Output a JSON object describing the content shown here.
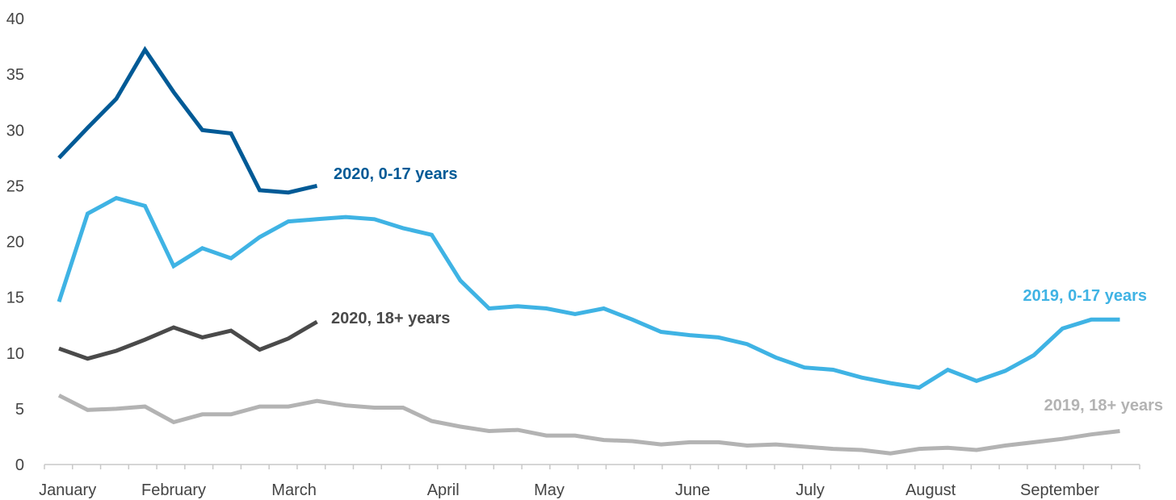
{
  "chart_data": {
    "type": "line",
    "title": "",
    "xlabel": "",
    "ylabel": "",
    "ylim": [
      0,
      40
    ],
    "yticks": [
      0,
      5,
      10,
      15,
      20,
      25,
      30,
      35,
      40
    ],
    "grid": false,
    "legend": "inline labels at line ends",
    "month_labels": [
      "January",
      "February",
      "March",
      "April",
      "May",
      "June",
      "July",
      "August",
      "September"
    ],
    "weeks": 39,
    "series": [
      {
        "name": "2020, 0-17 years",
        "color": "#005a96",
        "values": [
          27.5,
          30.2,
          32.8,
          37.2,
          33.4,
          30.0,
          29.7,
          24.6,
          24.4,
          25.0
        ]
      },
      {
        "name": "2019, 0-17 years",
        "color": "#3fb3e4",
        "values": [
          14.6,
          22.5,
          23.9,
          23.2,
          17.8,
          19.4,
          18.5,
          20.4,
          21.8,
          22.0,
          22.2,
          22.0,
          21.2,
          20.6,
          16.5,
          14.0,
          14.2,
          14.0,
          13.5,
          14.0,
          13.0,
          11.9,
          11.6,
          11.4,
          10.8,
          9.6,
          8.7,
          8.5,
          7.8,
          7.3,
          6.9,
          8.5,
          7.5,
          8.4,
          9.8,
          12.2,
          13.0,
          13.0
        ]
      },
      {
        "name": "2020, 18+ years",
        "color": "#4a4a4a",
        "values": [
          10.4,
          9.5,
          10.2,
          11.2,
          12.3,
          11.4,
          12.0,
          10.3,
          11.3,
          12.8
        ]
      },
      {
        "name": "2019, 18+ years",
        "color": "#b3b3b3",
        "values": [
          6.2,
          4.9,
          5.0,
          5.2,
          3.8,
          4.5,
          4.5,
          5.2,
          5.2,
          5.7,
          5.3,
          5.1,
          5.1,
          3.9,
          3.4,
          3.0,
          3.1,
          2.6,
          2.6,
          2.2,
          2.1,
          1.8,
          2.0,
          2.0,
          1.7,
          1.8,
          1.6,
          1.4,
          1.3,
          1.0,
          1.4,
          1.5,
          1.3,
          1.7,
          2.0,
          2.3,
          2.7,
          3.0
        ]
      }
    ]
  }
}
